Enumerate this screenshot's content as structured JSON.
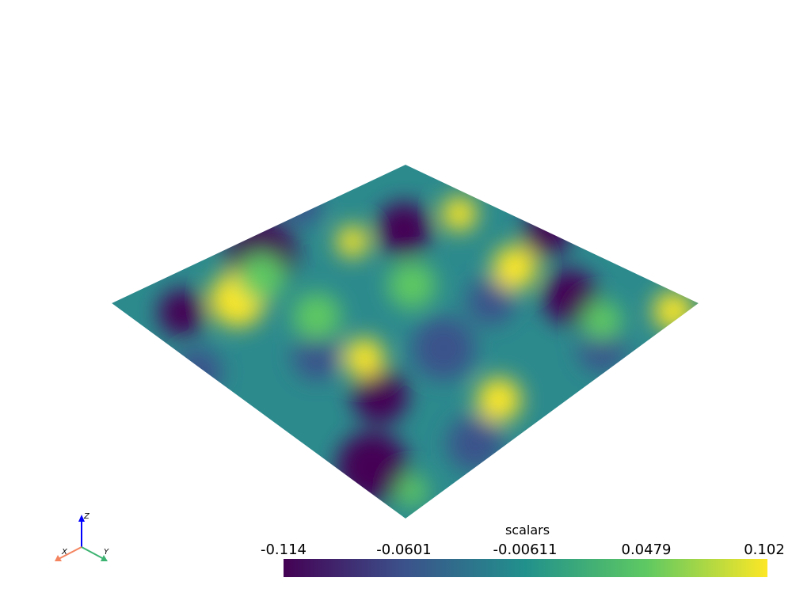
{
  "chart_data": {
    "type": "heatmap",
    "title": "scalars",
    "colormap": "viridis",
    "range": [
      -0.114,
      0.102
    ],
    "tick_labels": [
      "-0.114",
      "-0.0601",
      "-0.00611",
      "0.0479",
      "0.102"
    ],
    "colormap_stops": [
      "#440154",
      "#3b528b",
      "#21918c",
      "#5ec962",
      "#fde725"
    ],
    "legend_placement": "bottom-right"
  },
  "axes_widget": {
    "x_label": "X",
    "y_label": "Y",
    "z_label": "Z",
    "x_color": "#f4845f",
    "y_color": "#3cb371",
    "z_color": "#0000ff"
  }
}
